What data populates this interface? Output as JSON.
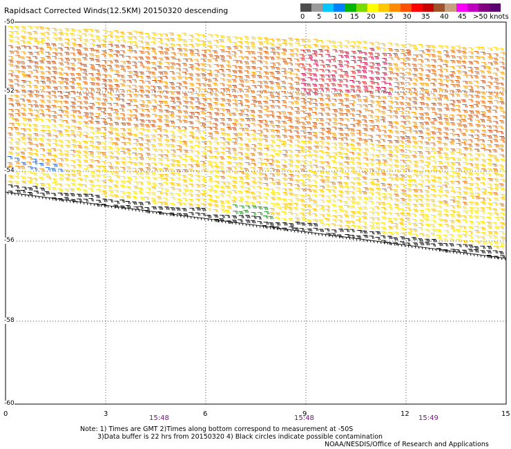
{
  "title": "Rapidsact Corrected Winds(12.5KM) 20150320 descending",
  "colorbar": {
    "colors": [
      "#4d4d4d",
      "#9a9a9a",
      "#00c8ff",
      "#0080ff",
      "#00b400",
      "#78dc00",
      "#ffff00",
      "#ffc800",
      "#ff8c00",
      "#ff5000",
      "#ff0000",
      "#c80000",
      "#a0522d",
      "#c8a080",
      "#ff00ff",
      "#c000c0",
      "#800080",
      "#5a0070"
    ],
    "labels": [
      "0",
      "5",
      "10",
      "15",
      "20",
      "25",
      "30",
      "35",
      "40",
      "45",
      ">50 knots"
    ]
  },
  "map": {
    "lat_labels": [
      "-50",
      "-52",
      "-54",
      "-56",
      "-58",
      "-60"
    ],
    "lon_labels": [
      "0",
      "3",
      "6",
      "9",
      "12",
      "15"
    ],
    "time_labels": [
      "15:48",
      "15:48",
      "15:49"
    ],
    "lat_range": [
      -60,
      -50
    ],
    "lon_range": [
      0,
      15
    ],
    "grid": "dotted"
  },
  "notes": {
    "line1": "Note: 1) Times are GMT 2)Times along bottom correspond to measurement at -50S",
    "line2": "3)Data buffer is 22 hrs from 20150320 4) Black circles indicate possible contamination"
  },
  "credit": "NOAA/NESDIS/Office of Research and Applications"
}
